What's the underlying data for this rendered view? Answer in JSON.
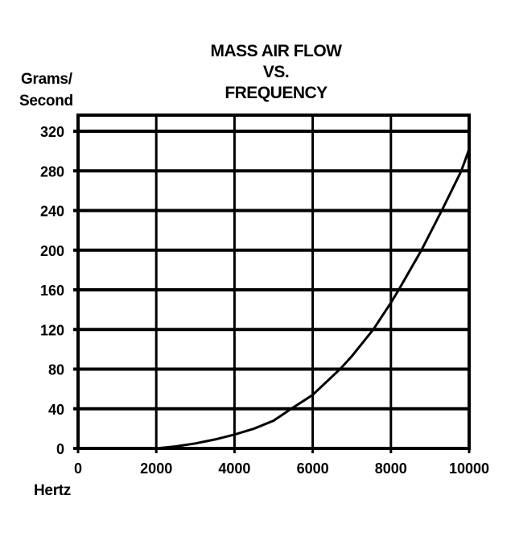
{
  "chart_data": {
    "type": "line",
    "title": [
      "MASS AIR FLOW",
      "VS.",
      "FREQUENCY"
    ],
    "ylabel": [
      "Grams/",
      "Second"
    ],
    "xlabel": "Hertz",
    "xlim": [
      0,
      10000
    ],
    "ylim": [
      0,
      320
    ],
    "xticks": [
      0,
      2000,
      4000,
      6000,
      8000,
      10000
    ],
    "yticks": [
      0,
      40,
      80,
      120,
      160,
      200,
      240,
      280,
      320
    ],
    "grid": true,
    "series": [
      {
        "name": "Mass Air Flow",
        "color": "#000000",
        "x": [
          2000,
          2500,
          3000,
          3500,
          4000,
          4500,
          5000,
          5450,
          6000,
          6700,
          7000,
          7550,
          8000,
          8200,
          8780,
          9300,
          9800,
          10000
        ],
        "y": [
          0,
          2,
          5,
          9,
          14,
          20,
          28,
          40,
          54,
          80,
          93,
          120,
          147,
          160,
          200,
          240,
          280,
          302
        ]
      }
    ]
  }
}
